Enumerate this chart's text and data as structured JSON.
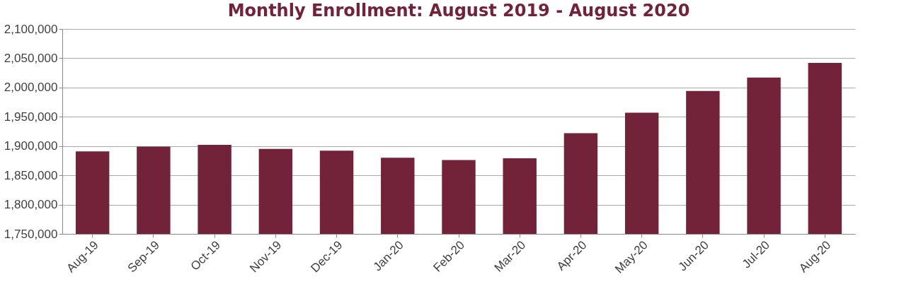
{
  "chart_data": {
    "type": "bar",
    "title": "Monthly Enrollment: August 2019 - August 2020",
    "categories": [
      "Aug-19",
      "Sep-19",
      "Oct-19",
      "Nov-19",
      "Dec-19",
      "Jan-20",
      "Feb-20",
      "Mar-20",
      "Apr-20",
      "May-20",
      "Jun-20",
      "Jul-20",
      "Aug-20"
    ],
    "values": [
      1891000,
      1899000,
      1902000,
      1895000,
      1892000,
      1880000,
      1876000,
      1879000,
      1922000,
      1957000,
      1994000,
      2017000,
      2042000
    ],
    "color": "#722339",
    "ylim": [
      1750000,
      2100000
    ],
    "yticks": [
      {
        "value": 1750000,
        "label": "1,750,000"
      },
      {
        "value": 1800000,
        "label": "1,800,000"
      },
      {
        "value": 1850000,
        "label": "1,850,000"
      },
      {
        "value": 1900000,
        "label": "1,900,000"
      },
      {
        "value": 1950000,
        "label": "1,950,000"
      },
      {
        "value": 2000000,
        "label": "2,000,000"
      },
      {
        "value": 2050000,
        "label": "2,050,000"
      },
      {
        "value": 2100000,
        "label": "2,100,000"
      }
    ],
    "grid": "y"
  }
}
